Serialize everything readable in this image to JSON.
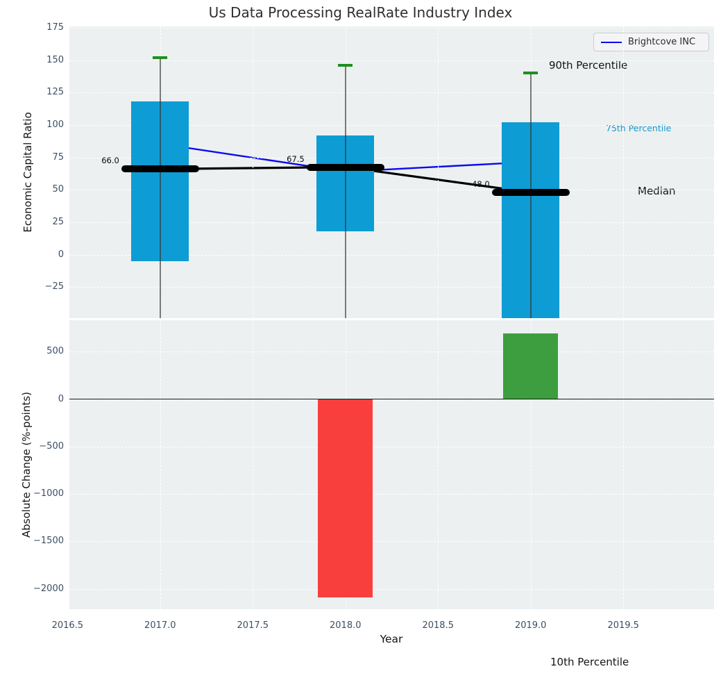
{
  "title": "Us Data Processing RealRate Industry Index",
  "legend": {
    "label": "Brightcove INC",
    "line_color": "#0a0af0"
  },
  "annotations": {
    "p90": "90th Percentile",
    "p75": "75th Percentile",
    "median": "Median",
    "p10": "10th Percentile"
  },
  "colors": {
    "plot_background": "#ecf0f1",
    "percentile_bar_blue": "#0d9cd4",
    "p90_cap_green": "#1e8f1e",
    "median_black": "#000000",
    "brightcove_line_blue": "#0a0af0",
    "negative_bar_red": "#f93e3e",
    "positive_bar_green": "#3c9e3e",
    "p75_annotation_text": "#159bce"
  },
  "chart_data": [
    {
      "type": "bar",
      "subtype": "percentile-box-bars-with-line-overlay",
      "ylabel": "Economic Capital Ratio",
      "ylim": [
        -49,
        176
      ],
      "xlim": [
        2016.51,
        2019.99
      ],
      "grid": true,
      "legend_position": "upper right",
      "ytick_values": [
        175,
        150,
        125,
        100,
        75,
        50,
        25,
        0,
        -25
      ],
      "ytick_labels": [
        "175",
        "150",
        "125",
        "100",
        "75",
        "50",
        "25",
        "0",
        "−25"
      ],
      "xtick_values": [
        2016.5,
        2017.0,
        2017.5,
        2018.0,
        2018.5,
        2019.0,
        2019.5
      ],
      "xtick_labels": [
        "2016.5",
        "2017.0",
        "2017.5",
        "2018.0",
        "2018.5",
        "2019.0",
        "2019.5"
      ],
      "years": [
        2017,
        2018,
        2019
      ],
      "series": [
        {
          "name": "25th-75th percentile bar",
          "color": "#0d9cd4",
          "top": [
            118,
            92,
            102
          ],
          "bottom": [
            -5,
            18,
            null
          ]
        },
        {
          "name": "90th percentile cap",
          "color": "#1e8f1e",
          "values": [
            152,
            146,
            140
          ]
        },
        {
          "name": "Median",
          "color": "#000000",
          "values": [
            66.0,
            67.5,
            48.0
          ],
          "labels": [
            "66.0",
            "67.5",
            "48.0"
          ]
        },
        {
          "name": "Brightcove INC",
          "color": "#0a0af0",
          "values": [
            85.5,
            64.0,
            71.5
          ]
        }
      ]
    },
    {
      "type": "bar",
      "ylabel": "Absolute Change (%-points)",
      "xlabel": "Year",
      "ylim": [
        -2214,
        832
      ],
      "xlim": [
        2016.51,
        2019.99
      ],
      "grid": true,
      "zero_line": true,
      "ytick_values": [
        500,
        0,
        -500,
        -1000,
        -1500,
        -2000
      ],
      "ytick_labels": [
        "500",
        "0",
        "−500",
        "−1000",
        "−1500",
        "−2000"
      ],
      "xtick_values": [
        2016.5,
        2017.0,
        2017.5,
        2018.0,
        2018.5,
        2019.0,
        2019.5
      ],
      "xtick_labels": [
        "2016.5",
        "2017.0",
        "2017.5",
        "2018.0",
        "2018.5",
        "2019.0",
        "2019.5"
      ],
      "x": [
        2018,
        2019
      ],
      "values": [
        -2086,
        695
      ],
      "bar_colors": [
        "#f93e3e",
        "#3c9e3e"
      ]
    }
  ]
}
